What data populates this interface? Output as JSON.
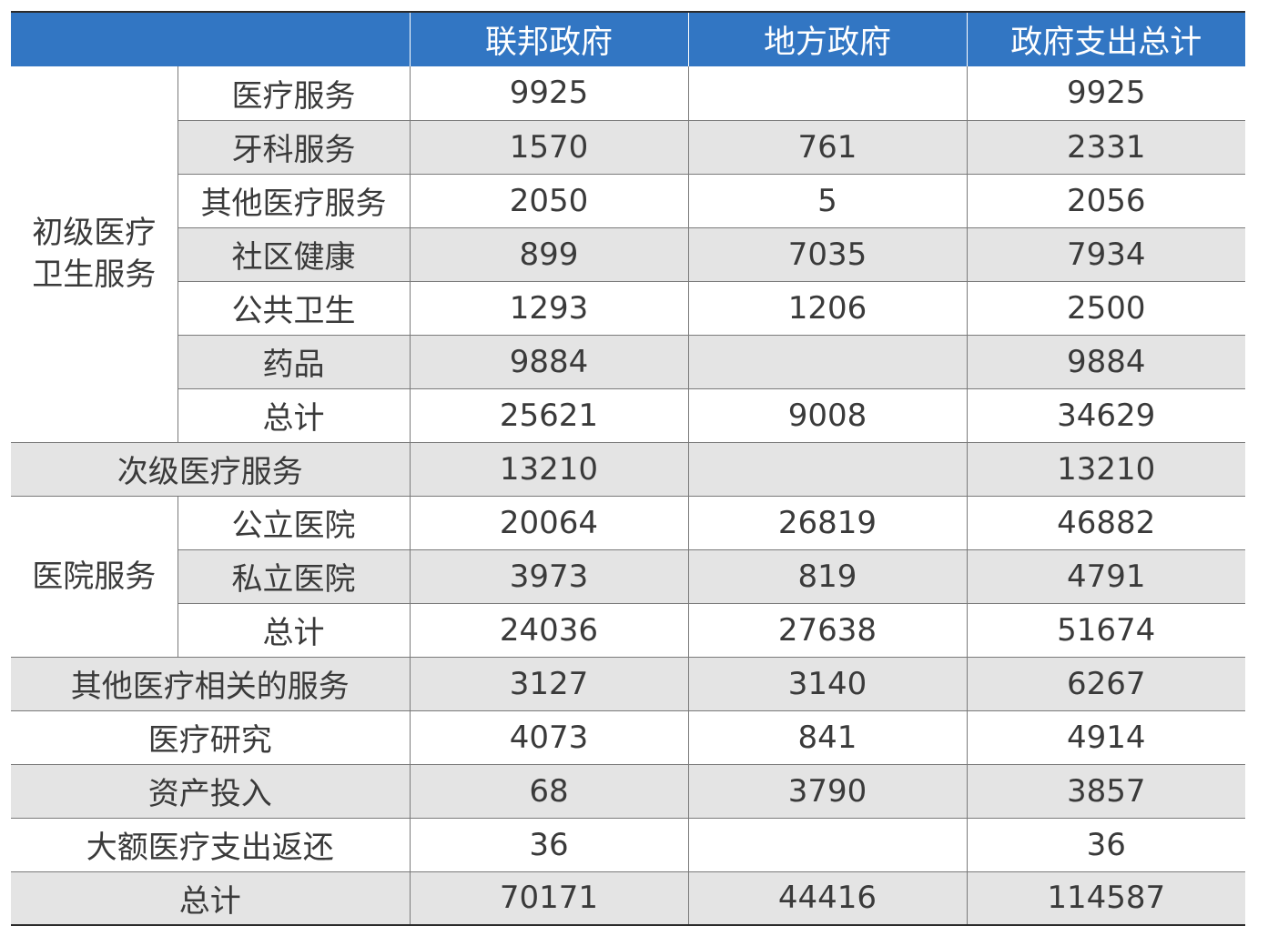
{
  "table": {
    "headers": [
      "",
      "联邦政府",
      "地方政府",
      "政府支出总计"
    ],
    "primary_care": {
      "group_label_line1": "初级医疗",
      "group_label_line2": "卫生服务",
      "rows": [
        {
          "label": "医疗服务",
          "federal": "9925",
          "local": "",
          "total": "9925"
        },
        {
          "label": "牙科服务",
          "federal": "1570",
          "local": "761",
          "total": "2331"
        },
        {
          "label": "其他医疗服务",
          "federal": "2050",
          "local": "5",
          "total": "2056"
        },
        {
          "label": "社区健康",
          "federal": "899",
          "local": "7035",
          "total": "7934"
        },
        {
          "label": "公共卫生",
          "federal": "1293",
          "local": "1206",
          "total": "2500"
        },
        {
          "label": "药品",
          "federal": "9884",
          "local": "",
          "total": "9884"
        },
        {
          "label": "总计",
          "federal": "25621",
          "local": "9008",
          "total": "34629"
        }
      ]
    },
    "secondary_care": {
      "label": "次级医疗服务",
      "federal": "13210",
      "local": "",
      "total": "13210"
    },
    "hospital": {
      "group_label": "医院服务",
      "rows": [
        {
          "label": "公立医院",
          "federal": "20064",
          "local": "26819",
          "total": "46882"
        },
        {
          "label": "私立医院",
          "federal": "3973",
          "local": "819",
          "total": "4791"
        },
        {
          "label": "总计",
          "federal": "24036",
          "local": "27638",
          "total": "51674"
        }
      ]
    },
    "other_rows": [
      {
        "label": "其他医疗相关的服务",
        "federal": "3127",
        "local": "3140",
        "total": "6267"
      },
      {
        "label": "医疗研究",
        "federal": "4073",
        "local": "841",
        "total": "4914"
      },
      {
        "label": "资产投入",
        "federal": "68",
        "local": "3790",
        "total": "3857"
      },
      {
        "label": "大额医疗支出返还",
        "federal": "36",
        "local": "",
        "total": "36"
      },
      {
        "label": "总计",
        "federal": "70171",
        "local": "44416",
        "total": "114587"
      }
    ]
  },
  "colors": {
    "header_bg": "#3276c3",
    "header_text": "#ffffff",
    "stripe_bg": "#e4e4e4",
    "text": "#3a3a3a"
  }
}
